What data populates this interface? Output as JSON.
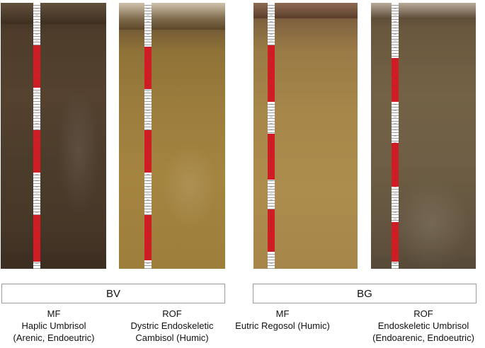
{
  "groups": [
    {
      "name": "BV"
    },
    {
      "name": "BG"
    }
  ],
  "profiles": [
    {
      "lines": [
        "MF",
        "Haplic Umbrisol",
        "(Arenic, Endoeutric)"
      ]
    },
    {
      "lines": [
        "ROF",
        "Dystric Endoskeletic",
        "Cambisol (Humic)"
      ]
    },
    {
      "lines": [
        "MF",
        "Eutric Regosol (Humic)"
      ]
    },
    {
      "lines": [
        "ROF",
        "Endoskeletic Umbrisol",
        "(Endoarenic, Endoeutric)"
      ]
    }
  ],
  "colors": {
    "ruler_red": "#d21c24",
    "ruler_white": "#ffffff",
    "soil_1": "#4a3a2c",
    "soil_2": "#9a7a3c",
    "soil_3": "#a8843f",
    "soil_4": "#5e4e38"
  }
}
